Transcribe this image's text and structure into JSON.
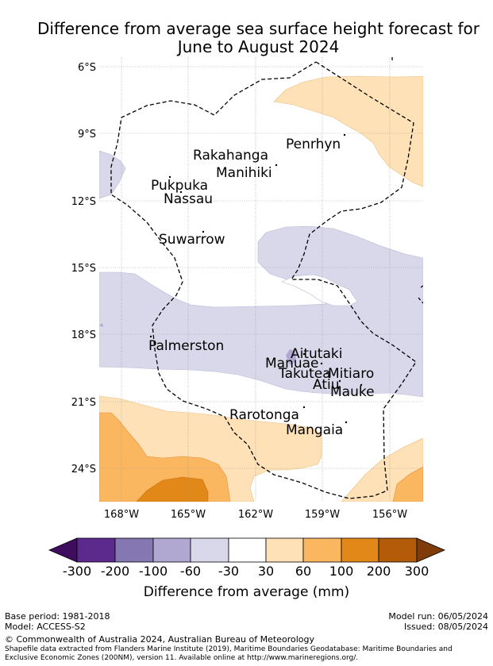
{
  "title": "Difference from average sea surface height forecast for June to August 2024",
  "title_line1": "Difference from average sea surface height forecast for",
  "title_line2": "June to August 2024",
  "lat_labels": [
    "6°S",
    "9°S",
    "12°S",
    "15°S",
    "18°S",
    "21°S",
    "24°S"
  ],
  "lon_labels": [
    "168°W",
    "165°W",
    "162°W",
    "159°W",
    "156°W"
  ],
  "places": [
    {
      "name": "Penrhyn",
      "id": "penrhyn"
    },
    {
      "name": "Rakahanga",
      "id": "rakahanga"
    },
    {
      "name": "Manihiki",
      "id": "manihiki"
    },
    {
      "name": "Pukpuka",
      "id": "pukpuka"
    },
    {
      "name": "Nassau",
      "id": "nassau"
    },
    {
      "name": "Suwarrow",
      "id": "suwarrow"
    },
    {
      "name": "Palmerston",
      "id": "palmerston"
    },
    {
      "name": "Aitutaki",
      "id": "aitutaki"
    },
    {
      "name": "Manuae",
      "id": "manuae"
    },
    {
      "name": "Takutea",
      "id": "takutea"
    },
    {
      "name": "Mitiaro",
      "id": "mitiaro"
    },
    {
      "name": "Atiu",
      "id": "atiu"
    },
    {
      "name": "Mauke",
      "id": "mauke"
    },
    {
      "name": "Rarotonga",
      "id": "rarotonga"
    },
    {
      "name": "Mangaia",
      "id": "mangaia"
    }
  ],
  "colorbar": {
    "labels": [
      "-300",
      "-200",
      "-100",
      "-60",
      "-30",
      "30",
      "60",
      "100",
      "200",
      "300"
    ],
    "colors": [
      "#3f0d60",
      "#5b2a8c",
      "#8578b2",
      "#b0a8d0",
      "#d8d8ea",
      "#ffffff",
      "#fee1b6",
      "#fbb660",
      "#e28818",
      "#b35b08",
      "#7f3b08"
    ],
    "title": "Difference from average (mm)"
  },
  "footer": {
    "base_period": "Base period: 1981-2018",
    "model": "Model: ACCESS-S2",
    "model_run": "Model run: 06/05/2024",
    "issued": "Issued: 08/05/2024",
    "copyright": "© Commonwealth of Australia 2024, Australian Bureau of Meteorology",
    "shapefile_line1": "Shapefile data extracted from Flanders Marine Institute (2019), Maritime Boundaries Geodatabase: Maritime Boundaries and",
    "shapefile_line2": "Exclusive Economic Zones (200NM), version 11. Available online at http://www.marineregions.org/."
  }
}
